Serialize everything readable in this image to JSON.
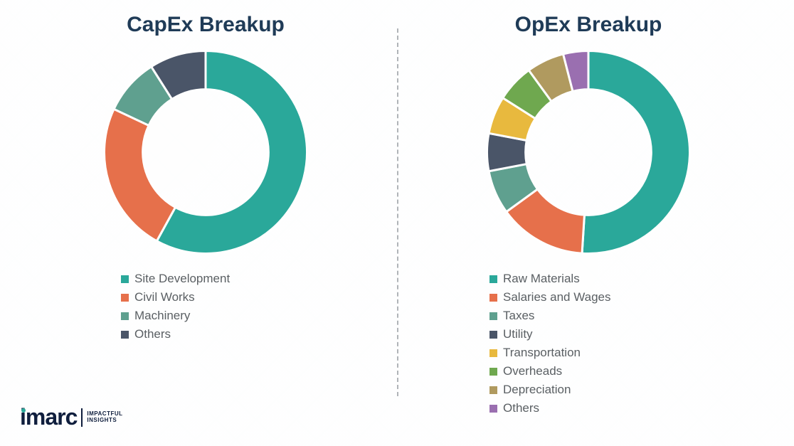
{
  "background_color": "#f8f9fa",
  "divider_color": "#b0b4b8",
  "title_color": "#1f3b57",
  "legend_text_color": "#5a5f63",
  "logo": {
    "text": "imarc",
    "tagline_line1": "IMPACTFUL",
    "tagline_line2": "INSIGHTS",
    "accent_color": "#2aa89a",
    "text_color": "#0f1e3d"
  },
  "charts": [
    {
      "id": "capex",
      "title": "CapEx Breakup",
      "type": "donut",
      "inner_radius_ratio": 0.62,
      "stroke_color": "#ffffff",
      "stroke_width": 2,
      "start_angle_deg": 0,
      "slices": [
        {
          "label": "Site Development",
          "value": 58,
          "color": "#2aa89a"
        },
        {
          "label": "Civil Works",
          "value": 24,
          "color": "#e6704b"
        },
        {
          "label": "Machinery",
          "value": 9,
          "color": "#5fa08f"
        },
        {
          "label": "Others",
          "value": 9,
          "color": "#4a5568"
        }
      ]
    },
    {
      "id": "opex",
      "title": "OpEx Breakup",
      "type": "donut",
      "inner_radius_ratio": 0.62,
      "stroke_color": "#ffffff",
      "stroke_width": 2,
      "start_angle_deg": 0,
      "slices": [
        {
          "label": "Raw Materials",
          "value": 51,
          "color": "#2aa89a"
        },
        {
          "label": "Salaries and Wages",
          "value": 14,
          "color": "#e6704b"
        },
        {
          "label": "Taxes",
          "value": 7,
          "color": "#5fa08f"
        },
        {
          "label": "Utility",
          "value": 6,
          "color": "#4a5568"
        },
        {
          "label": "Transportation",
          "value": 6,
          "color": "#e8b93e"
        },
        {
          "label": "Overheads",
          "value": 6,
          "color": "#6fa84f"
        },
        {
          "label": "Depreciation",
          "value": 6,
          "color": "#b09a5f"
        },
        {
          "label": "Others",
          "value": 4,
          "color": "#9a6fb0"
        }
      ]
    }
  ]
}
